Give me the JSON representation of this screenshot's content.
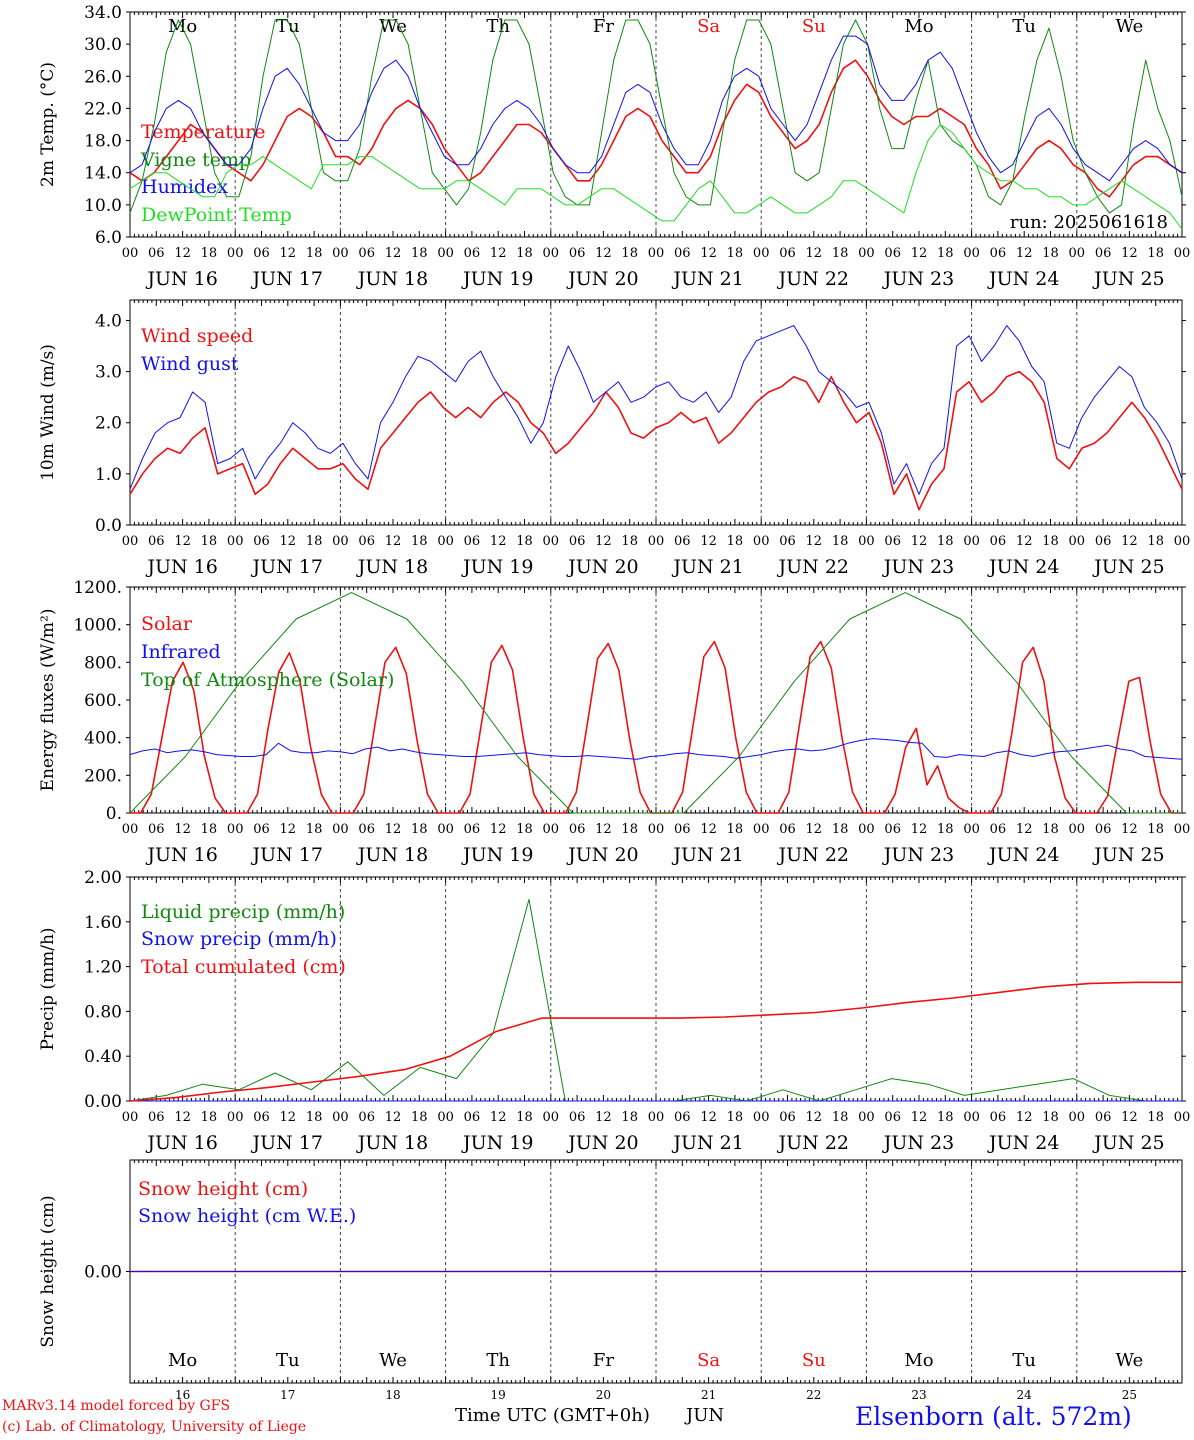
{
  "colors": {
    "red": "#ee1111",
    "green": "#118811",
    "blue": "#1111ee",
    "lightgreen": "#22dd22",
    "axis": "#000000"
  },
  "run_label": "run: 2025061618",
  "days": [
    {
      "dow": "Mo",
      "date": "JUN 16",
      "num": "16",
      "weekend": false
    },
    {
      "dow": "Tu",
      "date": "JUN 17",
      "num": "17",
      "weekend": false
    },
    {
      "dow": "We",
      "date": "JUN 18",
      "num": "18",
      "weekend": false
    },
    {
      "dow": "Th",
      "date": "JUN 19",
      "num": "19",
      "weekend": false
    },
    {
      "dow": "Fr",
      "date": "JUN 20",
      "num": "20",
      "weekend": false
    },
    {
      "dow": "Sa",
      "date": "JUN 21",
      "num": "21",
      "weekend": true
    },
    {
      "dow": "Su",
      "date": "JUN 22",
      "num": "22",
      "weekend": true
    },
    {
      "dow": "Mo",
      "date": "JUN 23",
      "num": "23",
      "weekend": false
    },
    {
      "dow": "Tu",
      "date": "JUN 24",
      "num": "24",
      "weekend": false
    },
    {
      "dow": "We",
      "date": "JUN 25",
      "num": "25",
      "weekend": false
    }
  ],
  "hour_labels": [
    "00",
    "06",
    "12",
    "18"
  ],
  "footer": {
    "model": "MARv3.14 model forced by GFS",
    "lab": "(c) Lab. of Climatology, University of Liege",
    "xlabel": "Time UTC (GMT+0h)",
    "month": "JUN",
    "station": "Elsenborn (alt. 572m)"
  },
  "chart_data": [
    {
      "type": "line",
      "ylabel": "2m Temp. (°C)",
      "ylim": [
        6,
        34
      ],
      "yticks": [
        "6.0",
        "10.0",
        "14.0",
        "18.0",
        "22.0",
        "26.0",
        "30.0",
        "34.0"
      ],
      "series": [
        {
          "name": "Temperature",
          "color": "red",
          "values": [
            14,
            13,
            14,
            16,
            18,
            20,
            19,
            17,
            15,
            14,
            13,
            15,
            18,
            21,
            22,
            21,
            19,
            16,
            16,
            15,
            17,
            20,
            22,
            23,
            22,
            20,
            17,
            15,
            13,
            14,
            16,
            18,
            20,
            20,
            19,
            17,
            15,
            13,
            13,
            15,
            18,
            21,
            22,
            21,
            18,
            16,
            14,
            14,
            16,
            20,
            23,
            25,
            24,
            21,
            19,
            17,
            18,
            20,
            24,
            27,
            28,
            26,
            23,
            21,
            20,
            21,
            21,
            22,
            21,
            20,
            17,
            15,
            12,
            13,
            15,
            17,
            18,
            17,
            15,
            14,
            12,
            11,
            13,
            15,
            16,
            16,
            15,
            14
          ]
        },
        {
          "name": "Vigne temp",
          "color": "green",
          "values": [
            9,
            13,
            20,
            29,
            33,
            30,
            22,
            14,
            11,
            11,
            16,
            26,
            33,
            33,
            30,
            22,
            14,
            13,
            13,
            17,
            26,
            33,
            33,
            30,
            22,
            14,
            12,
            10,
            12,
            19,
            28,
            33,
            33,
            30,
            22,
            14,
            11,
            10,
            10,
            19,
            28,
            33,
            33,
            30,
            22,
            14,
            11,
            10,
            10,
            19,
            28,
            33,
            33,
            30,
            22,
            14,
            13,
            14,
            22,
            30,
            33,
            30,
            22,
            17,
            17,
            23,
            28,
            20,
            18,
            17,
            15,
            11,
            10,
            13,
            21,
            28,
            32,
            26,
            18,
            14,
            11,
            9,
            10,
            20,
            28,
            22,
            18,
            11
          ]
        },
        {
          "name": "Humidex",
          "color": "blue",
          "values": [
            14,
            15,
            19,
            22,
            23,
            22,
            19,
            17,
            15,
            15,
            17,
            22,
            26,
            27,
            25,
            22,
            19,
            18,
            18,
            20,
            24,
            27,
            28,
            26,
            22,
            19,
            16,
            15,
            15,
            17,
            20,
            22,
            23,
            22,
            20,
            17,
            15,
            14,
            14,
            16,
            20,
            24,
            25,
            24,
            20,
            17,
            15,
            15,
            18,
            23,
            26,
            27,
            26,
            22,
            20,
            18,
            20,
            24,
            28,
            31,
            31,
            30,
            25,
            23,
            23,
            25,
            28,
            29,
            27,
            23,
            19,
            16,
            14,
            15,
            18,
            21,
            22,
            20,
            17,
            15,
            14,
            13,
            15,
            17,
            18,
            17,
            15,
            14
          ]
        },
        {
          "name": "DewPoint Temp",
          "color": "lightgreen",
          "values": [
            12,
            13,
            14,
            14,
            13,
            12,
            11,
            11,
            14,
            15,
            15,
            16,
            15,
            14,
            13,
            12,
            15,
            15,
            15,
            16,
            16,
            15,
            14,
            13,
            12,
            12,
            12,
            13,
            13,
            12,
            11,
            10,
            12,
            12,
            12,
            11,
            10,
            10,
            11,
            12,
            12,
            11,
            10,
            9,
            8,
            8,
            10,
            12,
            13,
            11,
            9,
            9,
            10,
            11,
            10,
            9,
            9,
            10,
            11,
            13,
            13,
            12,
            11,
            10,
            9,
            14,
            18,
            20,
            19,
            17,
            15,
            14,
            13,
            13,
            12,
            12,
            11,
            11,
            10,
            10,
            11,
            12,
            13,
            12,
            11,
            10,
            9,
            7
          ]
        }
      ]
    },
    {
      "type": "line",
      "ylabel": "10m Wind (m/s)",
      "ylim": [
        0,
        4.4
      ],
      "yticks": [
        "0.0",
        "1.0",
        "2.0",
        "3.0",
        "4.0"
      ],
      "series": [
        {
          "name": "Wind speed",
          "color": "red",
          "values": [
            0.6,
            1.0,
            1.3,
            1.5,
            1.4,
            1.7,
            1.9,
            1.0,
            1.1,
            1.2,
            0.6,
            0.8,
            1.2,
            1.5,
            1.3,
            1.1,
            1.1,
            1.2,
            0.9,
            0.7,
            1.5,
            1.8,
            2.1,
            2.4,
            2.6,
            2.3,
            2.1,
            2.3,
            2.1,
            2.4,
            2.6,
            2.4,
            2.0,
            1.8,
            1.4,
            1.6,
            1.9,
            2.2,
            2.6,
            2.3,
            1.8,
            1.7,
            1.9,
            2.0,
            2.2,
            2.0,
            2.1,
            1.6,
            1.8,
            2.1,
            2.4,
            2.6,
            2.7,
            2.9,
            2.8,
            2.4,
            2.9,
            2.4,
            2.0,
            2.2,
            1.6,
            0.6,
            1.0,
            0.3,
            0.8,
            1.1,
            2.6,
            2.8,
            2.4,
            2.6,
            2.9,
            3.0,
            2.8,
            2.4,
            1.3,
            1.1,
            1.5,
            1.6,
            1.8,
            2.1,
            2.4,
            2.1,
            1.7,
            1.2,
            0.7
          ]
        },
        {
          "name": "Wind gust",
          "color": "blue",
          "values": [
            0.7,
            1.3,
            1.8,
            2.0,
            2.1,
            2.6,
            2.4,
            1.2,
            1.3,
            1.5,
            0.9,
            1.3,
            1.6,
            2.0,
            1.8,
            1.5,
            1.4,
            1.6,
            1.2,
            0.9,
            2.0,
            2.4,
            2.9,
            3.3,
            3.2,
            3.0,
            2.8,
            3.2,
            3.4,
            2.9,
            2.5,
            2.1,
            1.6,
            2.0,
            2.9,
            3.5,
            3.0,
            2.4,
            2.6,
            2.8,
            2.4,
            2.5,
            2.7,
            2.8,
            2.5,
            2.4,
            2.6,
            2.2,
            2.5,
            3.2,
            3.6,
            3.7,
            3.8,
            3.9,
            3.5,
            3.0,
            2.8,
            2.6,
            2.3,
            2.4,
            1.8,
            0.8,
            1.2,
            0.6,
            1.2,
            1.5,
            3.5,
            3.7,
            3.2,
            3.5,
            3.9,
            3.6,
            3.1,
            2.8,
            1.6,
            1.5,
            2.1,
            2.5,
            2.8,
            3.1,
            2.9,
            2.3,
            2.0,
            1.6,
            0.9
          ]
        }
      ]
    },
    {
      "type": "line",
      "ylabel": "Energy fluxes (W/m²)",
      "ylim": [
        0,
        1200
      ],
      "yticks": [
        "0.",
        "200.",
        "400.",
        "600.",
        "800.",
        "1000.",
        "1200."
      ],
      "series": [
        {
          "name": "Solar",
          "color": "red",
          "values": [
            0,
            0,
            100,
            400,
            700,
            800,
            650,
            300,
            80,
            0,
            0,
            0,
            100,
            450,
            750,
            850,
            700,
            350,
            100,
            0,
            0,
            0,
            100,
            450,
            800,
            880,
            740,
            390,
            100,
            0,
            0,
            0,
            100,
            450,
            800,
            890,
            760,
            400,
            100,
            0,
            0,
            0,
            110,
            460,
            820,
            900,
            760,
            400,
            110,
            0,
            0,
            0,
            110,
            470,
            830,
            910,
            770,
            400,
            110,
            0,
            0,
            0,
            110,
            470,
            830,
            910,
            770,
            400,
            110,
            0,
            0,
            0,
            100,
            350,
            450,
            150,
            250,
            80,
            30,
            0,
            0,
            0,
            100,
            430,
            800,
            880,
            700,
            300,
            80,
            0,
            0,
            0,
            90,
            400,
            700,
            720,
            380,
            100,
            0,
            0
          ]
        },
        {
          "name": "Infrared",
          "color": "blue",
          "values": [
            310,
            330,
            340,
            320,
            330,
            335,
            325,
            310,
            305,
            300,
            300,
            310,
            370,
            330,
            320,
            320,
            330,
            325,
            315,
            340,
            350,
            330,
            340,
            325,
            315,
            310,
            305,
            300,
            300,
            305,
            310,
            315,
            320,
            310,
            305,
            300,
            300,
            305,
            300,
            295,
            290,
            285,
            300,
            305,
            315,
            320,
            310,
            305,
            300,
            290,
            300,
            310,
            325,
            335,
            340,
            330,
            335,
            350,
            370,
            385,
            395,
            390,
            385,
            375,
            370,
            300,
            295,
            310,
            305,
            300,
            320,
            330,
            310,
            300,
            315,
            325,
            330,
            340,
            350,
            360,
            340,
            330,
            300,
            295,
            290,
            285
          ]
        },
        {
          "name": "Top of Atmosphere (Solar)",
          "color": "green",
          "values": [
            0,
            300,
            700,
            1030,
            1170,
            1030,
            700,
            300,
            0,
            0,
            0,
            300,
            700,
            1030,
            1170,
            1030,
            700,
            300,
            0,
            0
          ]
        }
      ]
    },
    {
      "type": "line",
      "ylabel": "Precip (mm/h)",
      "ylim": [
        0,
        2
      ],
      "yticks": [
        "0.00",
        "0.40",
        "0.80",
        "1.20",
        "1.60",
        "2.00"
      ],
      "series": [
        {
          "name": "Liquid precip (mm/h)",
          "color": "green",
          "values": [
            0,
            0.05,
            0.15,
            0.1,
            0.25,
            0.1,
            0.35,
            0.05,
            0.3,
            0.2,
            0.6,
            1.8,
            0.0,
            0.0,
            0.0,
            0.0,
            0.05,
            0.0,
            0.1,
            0.0,
            0.1,
            0.2,
            0.15,
            0.05,
            0.1,
            0.15,
            0.2,
            0.05,
            0.0,
            0.0
          ]
        },
        {
          "name": "Snow precip (mm/h)",
          "color": "blue",
          "values": [
            0,
            0
          ]
        },
        {
          "name": "Total cumulated (cm)",
          "color": "red",
          "values": [
            0,
            0.03,
            0.08,
            0.12,
            0.17,
            0.22,
            0.28,
            0.4,
            0.62,
            0.74,
            0.74,
            0.74,
            0.74,
            0.75,
            0.77,
            0.79,
            0.83,
            0.88,
            0.92,
            0.97,
            1.02,
            1.05,
            1.06,
            1.06
          ]
        }
      ]
    },
    {
      "type": "line",
      "ylabel": "Snow height (cm)",
      "ylim": [
        -1,
        1
      ],
      "yticks": [
        "0.00"
      ],
      "series": [
        {
          "name": "Snow height (cm)",
          "color": "red",
          "values": [
            0,
            0
          ]
        },
        {
          "name": "Snow height (cm W.E.)",
          "color": "blue",
          "values": [
            0,
            0
          ]
        }
      ]
    }
  ]
}
